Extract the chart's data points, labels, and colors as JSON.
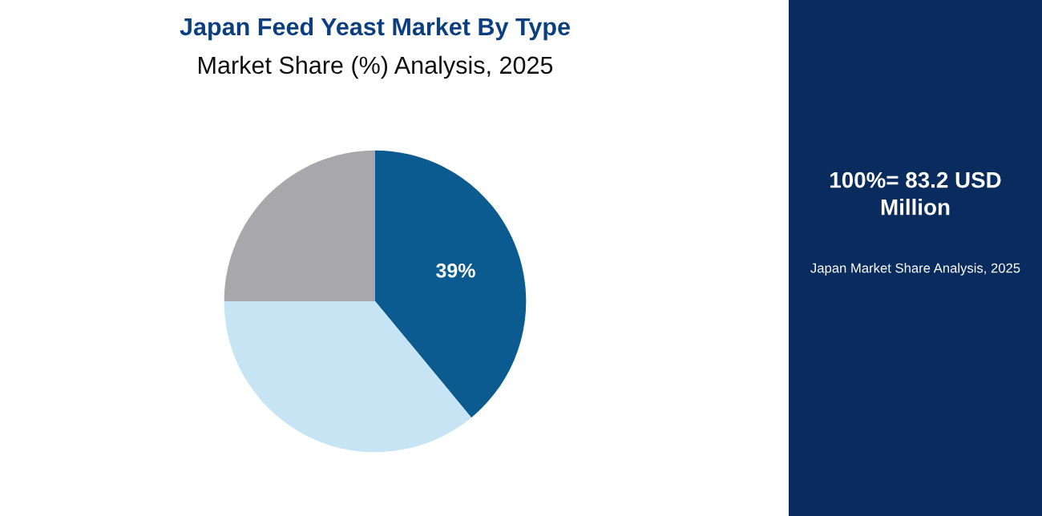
{
  "chart_data": {
    "type": "pie",
    "title": "Japan Feed Yeast Market By Type",
    "subtitle": "Market Share (%) Analysis, 2025",
    "categories": [
      null,
      null,
      null
    ],
    "values": [
      39,
      36,
      25
    ],
    "colors": [
      "#0b5b91",
      "#c7e4f4",
      "#a8a8ac"
    ],
    "value_labels": [
      "39%",
      null,
      null
    ],
    "annotations": [
      "100%= 83.2 USD\nMillion",
      "Japan Market Share Analysis, 2025"
    ],
    "legend": false
  }
}
